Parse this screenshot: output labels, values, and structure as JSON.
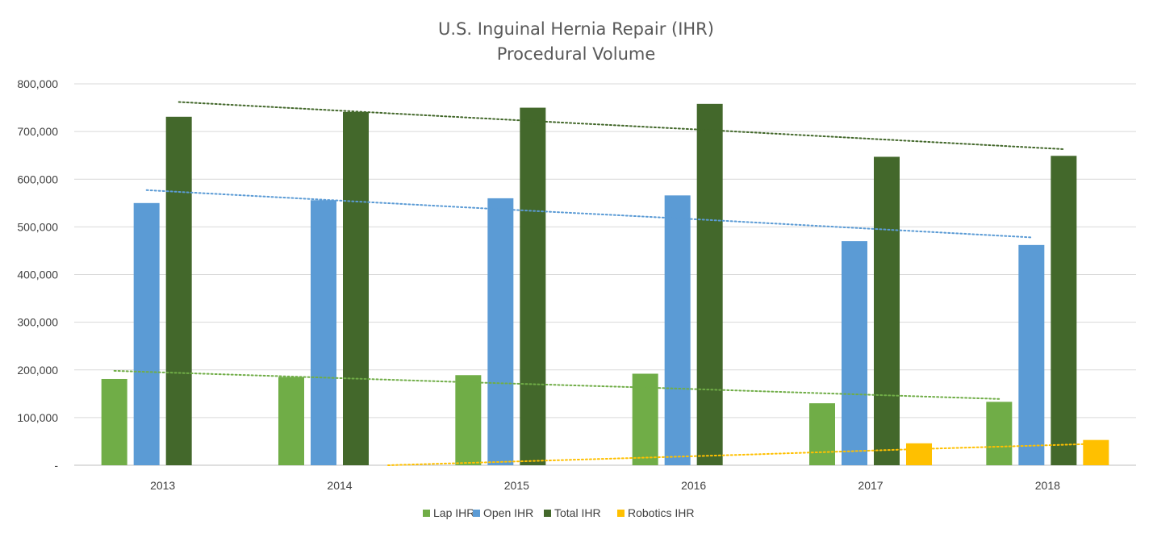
{
  "chart_data": {
    "type": "bar",
    "title": "U.S. Inguinal Hernia Repair (IHR)",
    "subtitle": "Procedural Volume",
    "categories": [
      "2013",
      "2014",
      "2015",
      "2016",
      "2017",
      "2018"
    ],
    "ylim": [
      0,
      800000
    ],
    "yticks": [
      "-",
      "100,000",
      "200,000",
      "300,000",
      "400,000",
      "500,000",
      "600,000",
      "700,000",
      "800,000"
    ],
    "grid": true,
    "legend_position": "bottom",
    "series": [
      {
        "name": "Lap IHR",
        "color": "#70AD47",
        "values": [
          181000,
          185000,
          189000,
          192000,
          130000,
          133000
        ],
        "trendline": [
          198000,
          186000,
          174000,
          163000,
          151000,
          139000
        ]
      },
      {
        "name": "Open IHR",
        "color": "#5B9BD5",
        "values": [
          550000,
          556000,
          560000,
          566000,
          470000,
          462000
        ],
        "trendline": [
          577000,
          557000,
          537000,
          518000,
          498000,
          478000
        ]
      },
      {
        "name": "Total IHR",
        "color": "#43682B",
        "values": [
          731000,
          741000,
          750000,
          758000,
          647000,
          649000
        ],
        "trendline": [
          762000,
          742000,
          722000,
          703000,
          683000,
          663000
        ]
      },
      {
        "name": "Robotics IHR",
        "color": "#FFC000",
        "values": [
          0,
          0,
          0,
          0,
          46000,
          53000
        ],
        "trendline": [
          null,
          0,
          11000,
          22000,
          34000,
          45000
        ]
      }
    ]
  }
}
